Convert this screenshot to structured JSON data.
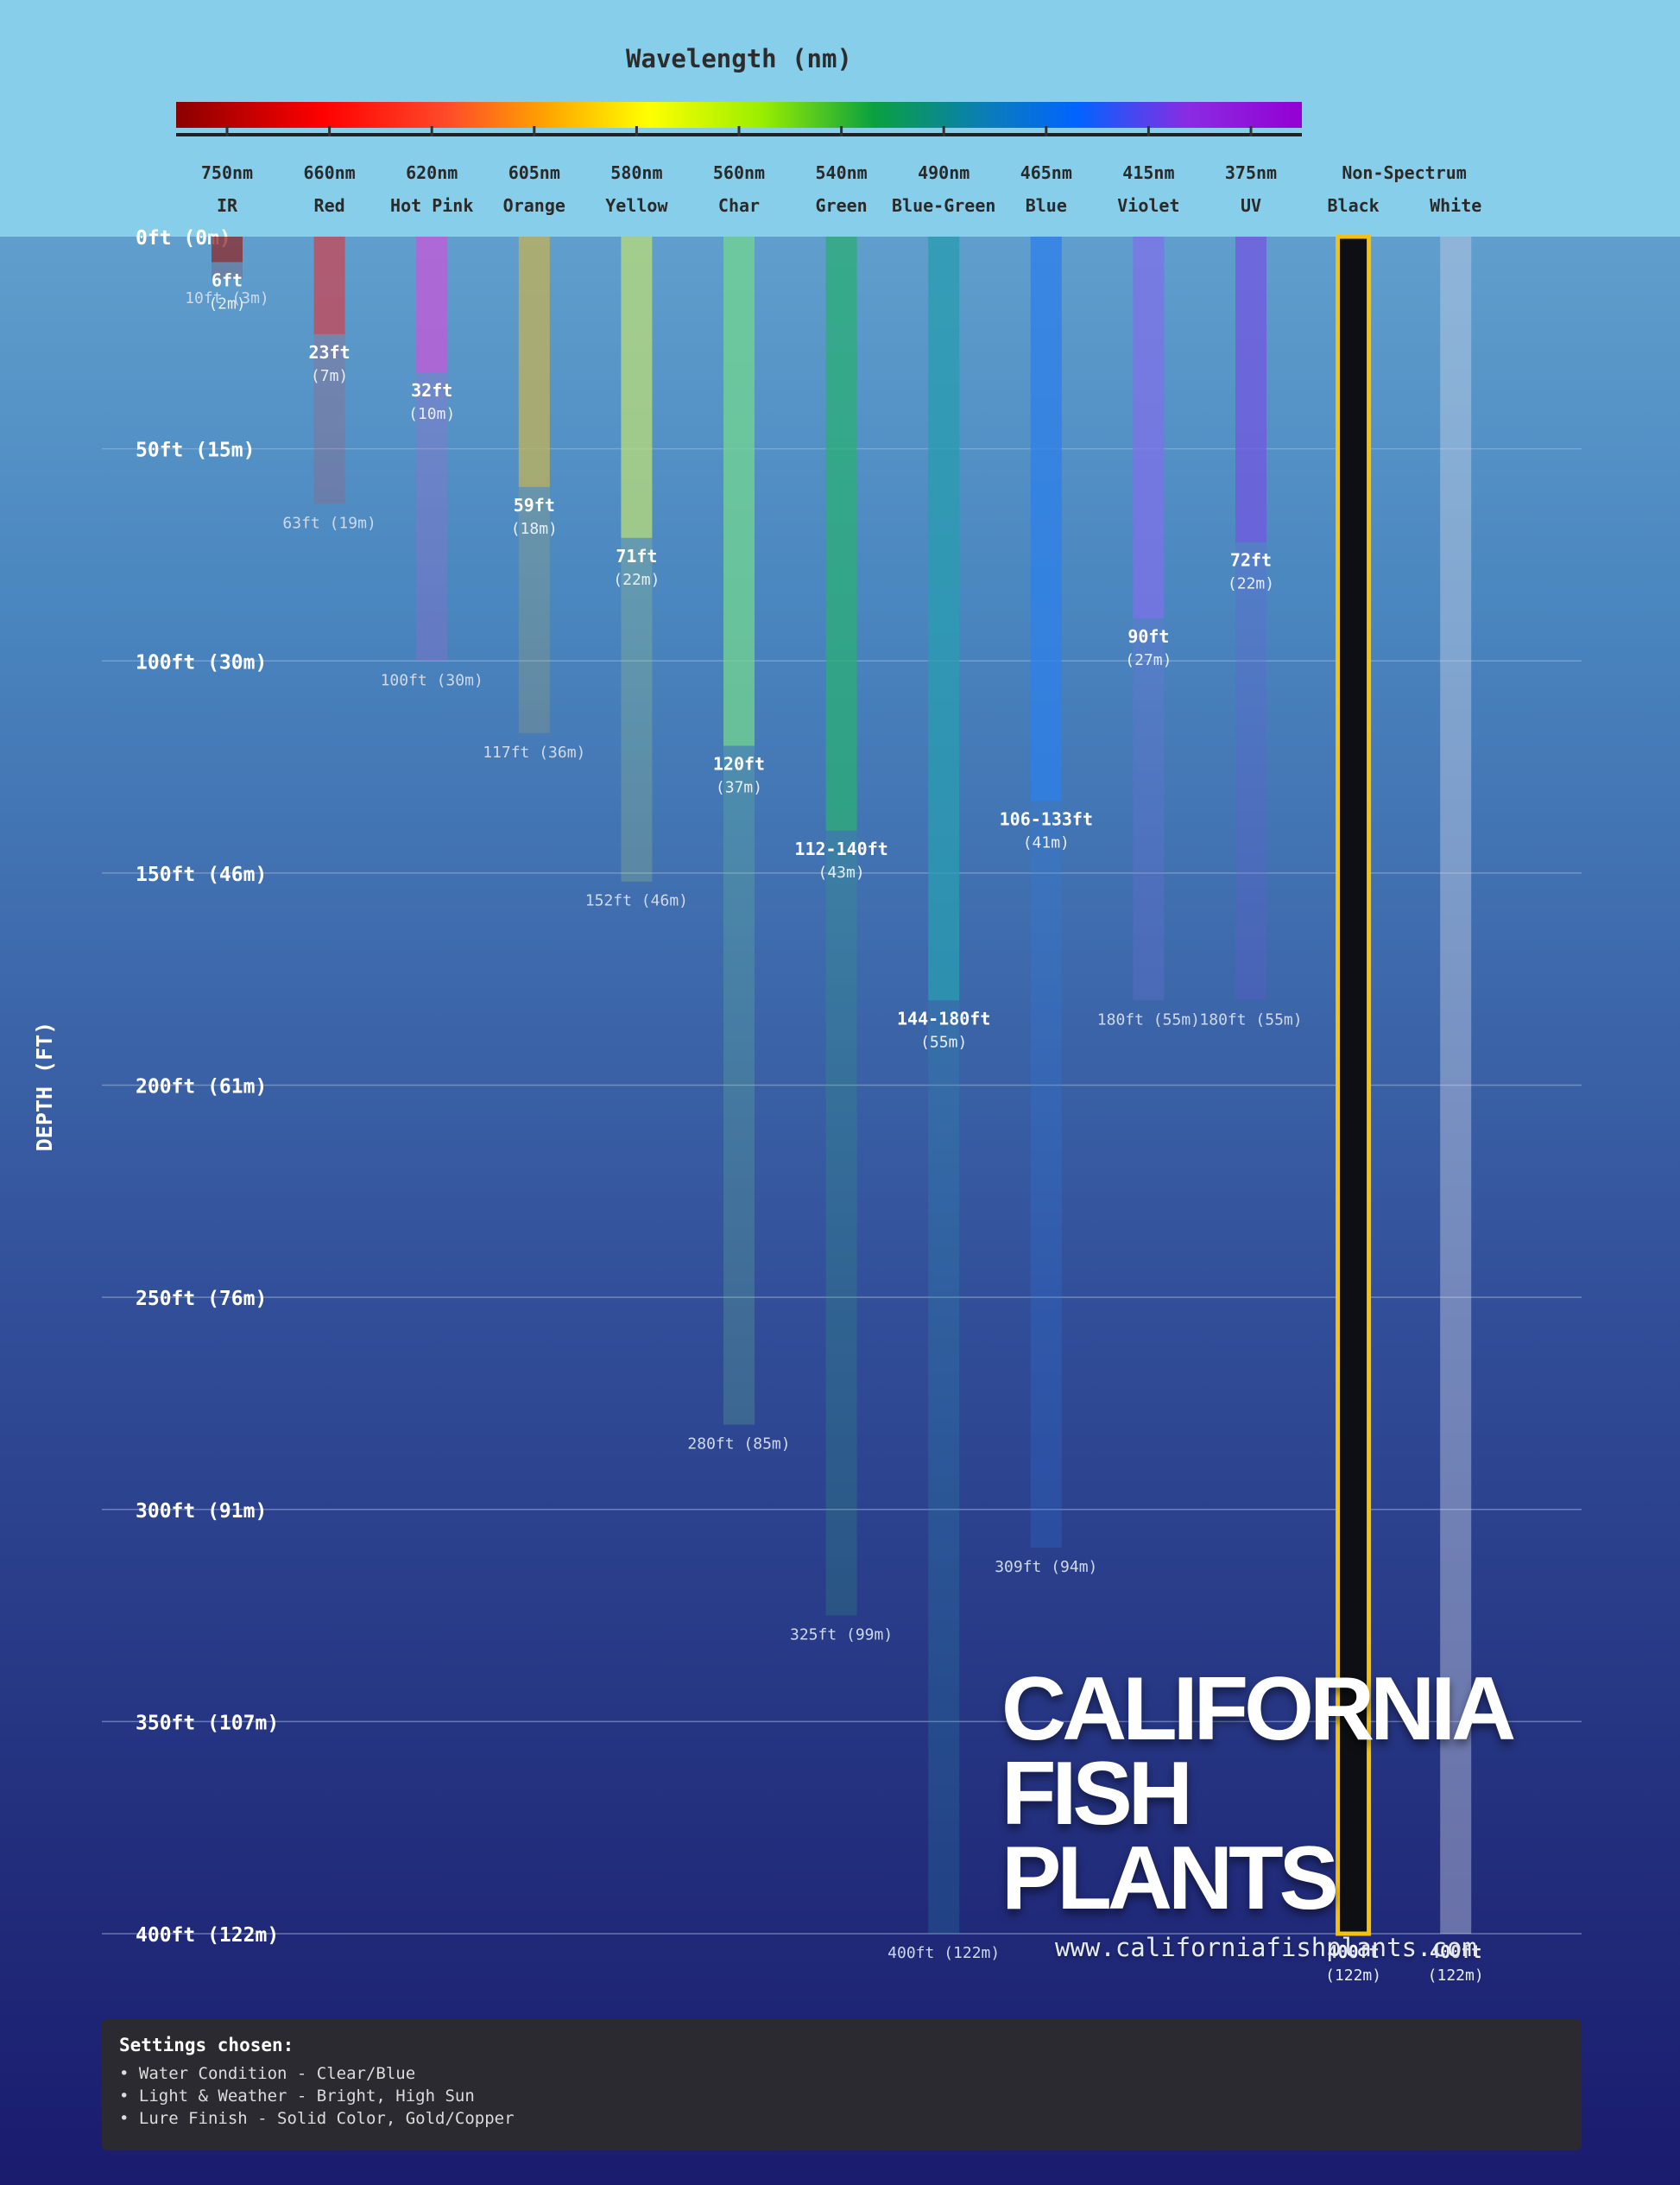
{
  "colors": {
    "sky": "#87ceeb",
    "grid": "#9fb6d6",
    "highlight": "#f4c20d"
  },
  "chart_data": {
    "type": "bar",
    "title": "Wavelength (nm)",
    "ylabel": "DEPTH (FT)",
    "ylim": [
      0,
      400
    ],
    "y_ticks": [
      {
        "value": 0,
        "label": "0ft (0m)"
      },
      {
        "value": 50,
        "label": "50ft (15m)"
      },
      {
        "value": 100,
        "label": "100ft (30m)"
      },
      {
        "value": 150,
        "label": "150ft (46m)"
      },
      {
        "value": 200,
        "label": "200ft (61m)"
      },
      {
        "value": 250,
        "label": "250ft (76m)"
      },
      {
        "value": 300,
        "label": "300ft (91m)"
      },
      {
        "value": 350,
        "label": "350ft (107m)"
      },
      {
        "value": 400,
        "label": "400ft (122m)"
      }
    ],
    "spectrum_ticks": [
      "750nm",
      "660nm",
      "620nm",
      "605nm",
      "580nm",
      "560nm",
      "540nm",
      "490nm",
      "465nm",
      "415nm",
      "375nm"
    ],
    "group_label": "Non-Spectrum",
    "columns": [
      {
        "wavelength": "750nm",
        "name": "IR",
        "color": "#8b2c2c",
        "visible": 6,
        "visible_label": "6ft",
        "visible_label_m": "(2m)",
        "fade": 10,
        "fade_label": "10ft (3m)"
      },
      {
        "wavelength": "660nm",
        "name": "Red",
        "color": "#c84858",
        "visible": 23,
        "visible_label": "23ft",
        "visible_label_m": "(7m)",
        "fade": 63,
        "fade_label": "63ft (19m)"
      },
      {
        "wavelength": "620nm",
        "name": "Hot Pink",
        "color": "#c45ad8",
        "visible": 32,
        "visible_label": "32ft",
        "visible_label_m": "(10m)",
        "fade": 100,
        "fade_label": "100ft (30m)"
      },
      {
        "wavelength": "605nm",
        "name": "Orange",
        "color": "#c0b25a",
        "visible": 59,
        "visible_label": "59ft",
        "visible_label_m": "(18m)",
        "fade": 117,
        "fade_label": "117ft (36m)"
      },
      {
        "wavelength": "580nm",
        "name": "Yellow",
        "color": "#b8dc7a",
        "visible": 71,
        "visible_label": "71ft",
        "visible_label_m": "(22m)",
        "fade": 152,
        "fade_label": "152ft (46m)"
      },
      {
        "wavelength": "560nm",
        "name": "Char",
        "color": "#72d492",
        "visible": 120,
        "visible_label": "120ft",
        "visible_label_m": "(37m)",
        "fade": 280,
        "fade_label": "280ft (85m)"
      },
      {
        "wavelength": "540nm",
        "name": "Green",
        "color": "#2cae78",
        "visible": 140,
        "visible_label": "112-140ft",
        "visible_label_m": "(43m)",
        "fade": 325,
        "fade_label": "325ft (99m)"
      },
      {
        "wavelength": "490nm",
        "name": "Blue-Green",
        "color": "#2a9cb0",
        "visible": 180,
        "visible_label": "144-180ft",
        "visible_label_m": "(55m)",
        "fade": 400,
        "fade_label": "400ft (122m)"
      },
      {
        "wavelength": "465nm",
        "name": "Blue",
        "color": "#2e80e8",
        "visible": 133,
        "visible_label": "106-133ft",
        "visible_label_m": "(41m)",
        "fade": 309,
        "fade_label": "309ft (94m)"
      },
      {
        "wavelength": "415nm",
        "name": "Violet",
        "color": "#7e72e8",
        "visible": 90,
        "visible_label": "90ft",
        "visible_label_m": "(27m)",
        "fade": 180,
        "fade_label": "180ft (55m)"
      },
      {
        "wavelength": "375nm",
        "name": "UV",
        "color": "#7258e0",
        "visible": 72,
        "visible_label": "72ft",
        "visible_label_m": "(22m)",
        "fade": 180,
        "fade_label": "180ft (55m)"
      },
      {
        "wavelength": "",
        "name": "Black",
        "color": "#0d0f12",
        "visible": 400,
        "visible_label": "400ft",
        "visible_label_m": "(122m)",
        "fade": null,
        "fade_label": "",
        "highlight": true
      },
      {
        "wavelength": "",
        "name": "White",
        "color": "#cfd6ea",
        "visible": 400,
        "visible_label": "400ft",
        "visible_label_m": "(122m)",
        "fade": null,
        "fade_label": "",
        "white": true
      }
    ]
  },
  "logo": {
    "line1": "CALIFORNIA",
    "line2": "FISH PLANTS",
    "url": "www.californiafishplants.com"
  },
  "settings": {
    "title": "Settings chosen:",
    "items": [
      "• Water Condition - Clear/Blue",
      "• Light & Weather - Bright, High Sun",
      "• Lure Finish - Solid Color, Gold/Copper"
    ]
  }
}
